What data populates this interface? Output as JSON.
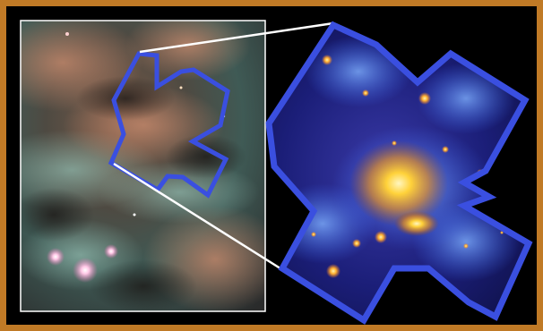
{
  "scene": {
    "description_visible_text": "",
    "colors": {
      "frame": "#c07a26",
      "background": "#000000",
      "outline_blue": "#3a4fe0",
      "connector_white": "#ffffff",
      "core_yellow": "#ffd23a"
    },
    "left_panel": {
      "subject": "nebula-optical-image"
    },
    "right_panel": {
      "subject": "xray-mosaic-cross-shape"
    }
  }
}
